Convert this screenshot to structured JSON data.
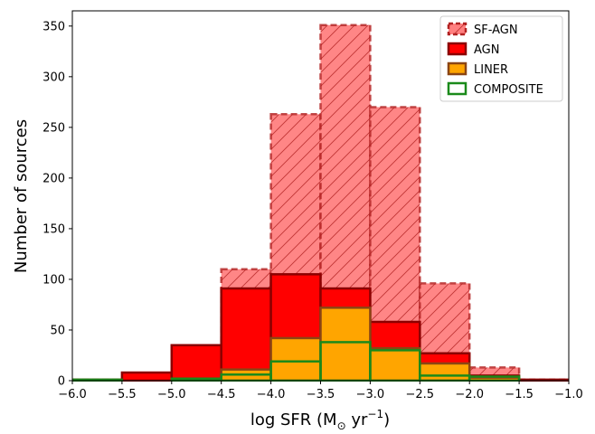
{
  "chart_data": {
    "type": "bar",
    "subtype": "overlaid histogram",
    "xlabel_main": "log SFR (M",
    "xlabel_sub": "⊙",
    "xlabel_mid": " yr",
    "xlabel_sup": "−1",
    "xlabel_end": ")",
    "ylabel": "Number of sources",
    "xlim": [
      -6.0,
      -1.0
    ],
    "ylim": [
      0,
      365
    ],
    "xticks": [
      "−6.0",
      "−5.5",
      "−5.0",
      "−4.5",
      "−4.0",
      "−3.5",
      "−3.0",
      "−2.5",
      "−2.0",
      "−1.5",
      "−1.0"
    ],
    "yticks": [
      "0",
      "50",
      "100",
      "150",
      "200",
      "250",
      "300",
      "350"
    ],
    "bin_edges": [
      -6.0,
      -5.5,
      -5.0,
      -4.5,
      -4.0,
      -3.5,
      -3.0,
      -2.5,
      -2.0,
      -1.5,
      -1.0
    ],
    "series": [
      {
        "name": "SF-AGN",
        "values": [
          1,
          1,
          1,
          110,
          263,
          351,
          270,
          96,
          13,
          1
        ],
        "fill": "#ff7f7f",
        "edge": "#b22222",
        "hatch": true,
        "dashed": true
      },
      {
        "name": "AGN",
        "values": [
          1,
          8,
          35,
          91,
          105,
          91,
          58,
          27,
          5,
          1
        ],
        "fill": "#ff0000",
        "edge": "#8b0000",
        "hatch": false,
        "dashed": false
      },
      {
        "name": "LINER",
        "values": [
          0,
          0,
          1,
          11,
          42,
          72,
          32,
          17,
          3,
          0
        ],
        "fill": "#ffa500",
        "edge": "#8b4513",
        "hatch": false,
        "dashed": false
      },
      {
        "name": "COMPOSITE",
        "values": [
          1,
          0,
          2,
          6,
          19,
          38,
          30,
          5,
          4,
          0
        ],
        "fill": "none",
        "edge": "#1a8a1a",
        "hatch": false,
        "dashed": false
      }
    ],
    "legend_position": "top-right",
    "grid": false
  }
}
